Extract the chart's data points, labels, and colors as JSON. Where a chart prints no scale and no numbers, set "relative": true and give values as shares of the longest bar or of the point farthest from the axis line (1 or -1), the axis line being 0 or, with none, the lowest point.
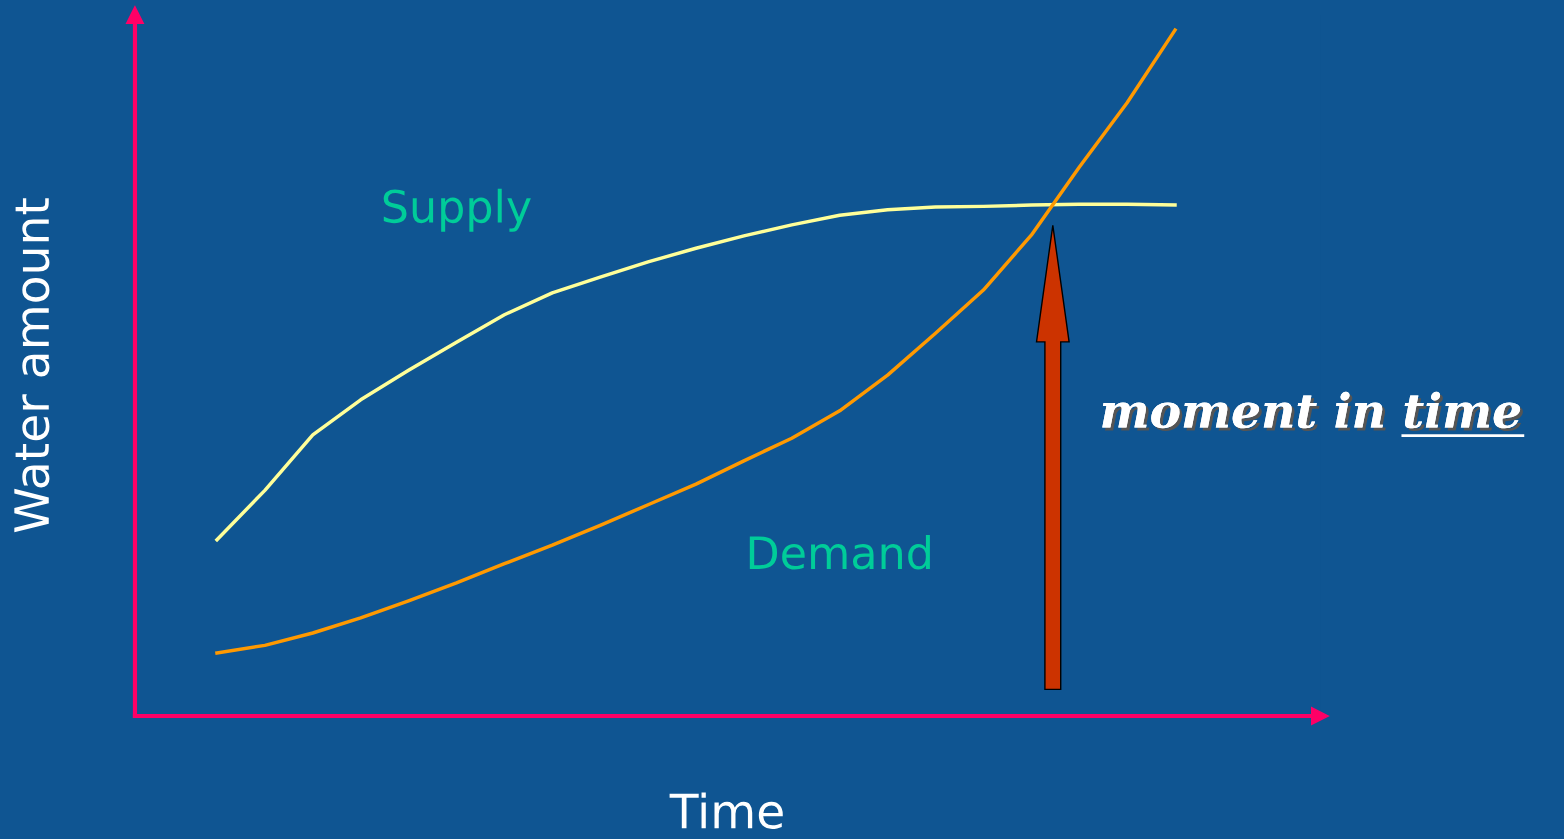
{
  "chart_data": {
    "type": "line",
    "relative": true,
    "xlabel": "Time",
    "ylabel": "Water amount",
    "categories": [
      null,
      null,
      null,
      null,
      null,
      null,
      null,
      null,
      null,
      null,
      null,
      null,
      null,
      null,
      null,
      null,
      null,
      null,
      null,
      null,
      null
    ],
    "series": [
      {
        "name": "Supply",
        "color": "#ffff99",
        "values": [
          0.257,
          0.329,
          0.41,
          0.461,
          0.504,
          0.545,
          0.585,
          0.617,
          0.64,
          0.662,
          0.682,
          0.7,
          0.716,
          0.73,
          0.738,
          0.742,
          0.743,
          0.745,
          0.746,
          0.746,
          0.745
        ]
      },
      {
        "name": "Demand",
        "color": "#ff9900",
        "values": [
          0.092,
          0.103,
          0.121,
          0.143,
          0.168,
          0.194,
          0.222,
          0.249,
          0.278,
          0.308,
          0.338,
          0.372,
          0.405,
          0.445,
          0.497,
          0.558,
          0.621,
          0.701,
          0.8,
          0.894,
          1.0
        ]
      }
    ],
    "annotations": [
      "moment in time"
    ],
    "legend": false,
    "grid": false,
    "marker": "none",
    "line_style": "solid"
  }
}
